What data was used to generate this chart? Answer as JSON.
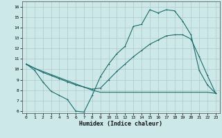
{
  "xlabel": "Humidex (Indice chaleur)",
  "bg_color": "#cce8e8",
  "grid_color": "#b0c8c8",
  "line_color": "#1a6b6b",
  "xlim": [
    -0.5,
    23.5
  ],
  "ylim": [
    5.8,
    16.5
  ],
  "xticks": [
    0,
    1,
    2,
    3,
    4,
    5,
    6,
    7,
    8,
    9,
    10,
    11,
    12,
    13,
    14,
    15,
    16,
    17,
    18,
    19,
    20,
    21,
    22,
    23
  ],
  "yticks": [
    6,
    7,
    8,
    9,
    10,
    11,
    12,
    13,
    14,
    15,
    16
  ],
  "series1_x": [
    0,
    1,
    2,
    3,
    4,
    5,
    6,
    7,
    8,
    9,
    10,
    11,
    12,
    13,
    14,
    15,
    16,
    17,
    18,
    19,
    20,
    21,
    22,
    23
  ],
  "series1_y": [
    10.5,
    9.9,
    8.8,
    7.9,
    7.5,
    7.1,
    6.0,
    5.9,
    7.5,
    9.3,
    10.5,
    11.5,
    12.2,
    14.1,
    14.3,
    15.7,
    15.4,
    15.7,
    15.6,
    14.6,
    13.3,
    9.9,
    8.5,
    7.7
  ],
  "series2_x": [
    0,
    1,
    2,
    3,
    4,
    5,
    6,
    7,
    8,
    9,
    10,
    11,
    12,
    13,
    14,
    15,
    16,
    17,
    18,
    19,
    20,
    21,
    22,
    23
  ],
  "series2_y": [
    10.5,
    10.1,
    9.7,
    9.4,
    9.1,
    8.8,
    8.5,
    8.3,
    8.1,
    8.2,
    9.0,
    9.8,
    10.5,
    11.2,
    11.8,
    12.4,
    12.8,
    13.2,
    13.3,
    13.3,
    12.9,
    11.2,
    9.4,
    7.7
  ],
  "series3_x": [
    0,
    1,
    2,
    3,
    4,
    5,
    6,
    7,
    8,
    9,
    10,
    11,
    12,
    13,
    14,
    15,
    16,
    17,
    18,
    19,
    20,
    21,
    22,
    23
  ],
  "series3_y": [
    10.5,
    10.1,
    9.8,
    9.5,
    9.2,
    8.9,
    8.6,
    8.3,
    8.0,
    7.8,
    7.8,
    7.8,
    7.8,
    7.8,
    7.8,
    7.8,
    7.8,
    7.8,
    7.8,
    7.8,
    7.8,
    7.8,
    7.8,
    7.7
  ]
}
